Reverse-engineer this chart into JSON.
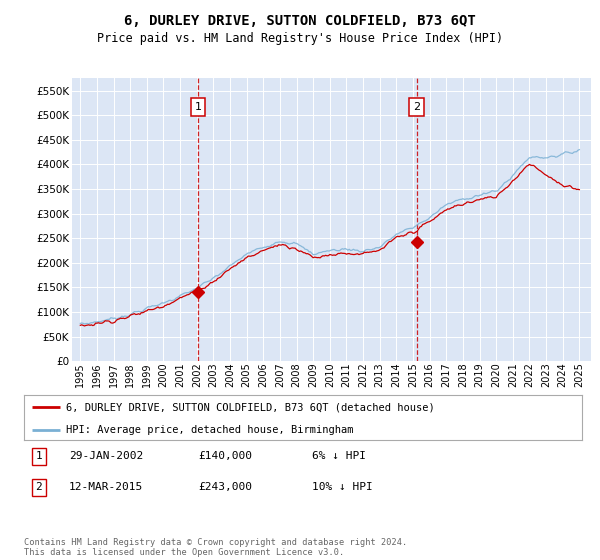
{
  "title": "6, DURLEY DRIVE, SUTTON COLDFIELD, B73 6QT",
  "subtitle": "Price paid vs. HM Land Registry's House Price Index (HPI)",
  "ylim": [
    0,
    575000
  ],
  "yticks": [
    0,
    50000,
    100000,
    150000,
    200000,
    250000,
    300000,
    350000,
    400000,
    450000,
    500000,
    550000
  ],
  "xlim_start": 1994.5,
  "xlim_end": 2025.7,
  "plot_bg_color": "#dce6f5",
  "grid_color": "#ffffff",
  "annotation1": {
    "x_year": 2002.08,
    "label": "1",
    "price": 140000
  },
  "annotation2": {
    "x_year": 2015.21,
    "label": "2",
    "price": 243000
  },
  "legend_line1": "6, DURLEY DRIVE, SUTTON COLDFIELD, B73 6QT (detached house)",
  "legend_line2": "HPI: Average price, detached house, Birmingham",
  "table_row1": [
    "1",
    "29-JAN-2002",
    "£140,000",
    "6% ↓ HPI"
  ],
  "table_row2": [
    "2",
    "12-MAR-2015",
    "£243,000",
    "10% ↓ HPI"
  ],
  "footer": "Contains HM Land Registry data © Crown copyright and database right 2024.\nThis data is licensed under the Open Government Licence v3.0.",
  "line_color_red": "#cc0000",
  "line_color_blue": "#7ab0d4",
  "annot_color": "#cc0000"
}
